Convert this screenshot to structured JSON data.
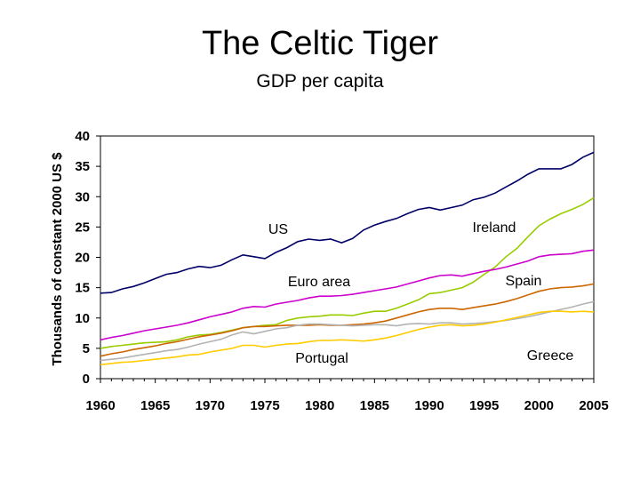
{
  "chart_data": {
    "type": "line",
    "title": "The Celtic Tiger",
    "subtitle": "GDP per capita",
    "xlabel": "",
    "ylabel": "Thousands of constant 2000 US $",
    "xlim": [
      1960,
      2005
    ],
    "ylim": [
      0,
      40
    ],
    "x_ticks": [
      "1960",
      "1965",
      "1970",
      "1975",
      "1980",
      "1985",
      "1990",
      "1995",
      "2000",
      "2005"
    ],
    "y_ticks": [
      "0",
      "5",
      "10",
      "15",
      "20",
      "25",
      "30",
      "35",
      "40"
    ],
    "grid": false,
    "legend": "none (series labeled inline)",
    "x": [
      1960,
      1961,
      1962,
      1963,
      1964,
      1965,
      1966,
      1967,
      1968,
      1969,
      1970,
      1971,
      1972,
      1973,
      1974,
      1975,
      1976,
      1977,
      1978,
      1979,
      1980,
      1981,
      1982,
      1983,
      1984,
      1985,
      1986,
      1987,
      1988,
      1989,
      1990,
      1991,
      1992,
      1993,
      1994,
      1995,
      1996,
      1997,
      1998,
      1999,
      2000,
      2001,
      2002,
      2003,
      2004,
      2005
    ],
    "series": [
      {
        "name": "US",
        "color": "#000066",
        "values": [
          14.1,
          14.2,
          14.8,
          15.2,
          15.8,
          16.5,
          17.2,
          17.5,
          18.1,
          18.5,
          18.3,
          18.7,
          19.6,
          20.4,
          20.1,
          19.8,
          20.8,
          21.6,
          22.6,
          23.0,
          22.8,
          23.0,
          22.4,
          23.1,
          24.5,
          25.3,
          25.9,
          26.4,
          27.2,
          27.9,
          28.2,
          27.8,
          28.2,
          28.6,
          29.5,
          29.9,
          30.6,
          31.6,
          32.6,
          33.7,
          34.6,
          34.6,
          34.6,
          35.3,
          36.5,
          37.3
        ]
      },
      {
        "name": "Ireland",
        "color": "#99cc00",
        "values": [
          5.0,
          5.3,
          5.5,
          5.7,
          5.9,
          6.0,
          6.1,
          6.4,
          6.9,
          7.2,
          7.3,
          7.6,
          8.0,
          8.4,
          8.6,
          8.8,
          8.9,
          9.6,
          10.0,
          10.2,
          10.3,
          10.5,
          10.5,
          10.4,
          10.8,
          11.1,
          11.1,
          11.6,
          12.3,
          13.0,
          14.0,
          14.2,
          14.6,
          15.0,
          15.9,
          17.2,
          18.4,
          20.1,
          21.5,
          23.4,
          25.2,
          26.3,
          27.2,
          27.9,
          28.7,
          29.8
        ]
      },
      {
        "name": "Euro area",
        "color": "#cc00cc",
        "values": [
          6.4,
          6.8,
          7.1,
          7.5,
          7.9,
          8.2,
          8.5,
          8.8,
          9.2,
          9.7,
          10.2,
          10.6,
          11.0,
          11.6,
          11.9,
          11.8,
          12.3,
          12.6,
          12.9,
          13.3,
          13.6,
          13.6,
          13.7,
          13.9,
          14.2,
          14.5,
          14.8,
          15.1,
          15.6,
          16.1,
          16.6,
          17.0,
          17.1,
          16.9,
          17.3,
          17.7,
          18.0,
          18.4,
          18.9,
          19.4,
          20.1,
          20.4,
          20.5,
          20.6,
          21.0,
          21.2
        ]
      },
      {
        "name": "Spain",
        "color": "#cc6600",
        "values": [
          3.7,
          4.1,
          4.4,
          4.8,
          5.1,
          5.4,
          5.8,
          6.1,
          6.5,
          6.9,
          7.2,
          7.5,
          7.9,
          8.4,
          8.6,
          8.6,
          8.7,
          8.8,
          8.8,
          8.8,
          8.9,
          8.8,
          8.8,
          8.9,
          9.0,
          9.2,
          9.5,
          10.0,
          10.5,
          11.0,
          11.4,
          11.6,
          11.6,
          11.4,
          11.7,
          12.0,
          12.3,
          12.7,
          13.2,
          13.8,
          14.4,
          14.8,
          15.0,
          15.1,
          15.3,
          15.6
        ]
      },
      {
        "name": "Greece",
        "color": "#b3b3b3",
        "values": [
          3.0,
          3.2,
          3.4,
          3.7,
          4.0,
          4.3,
          4.6,
          4.8,
          5.2,
          5.7,
          6.1,
          6.5,
          7.2,
          7.7,
          7.4,
          7.8,
          8.2,
          8.4,
          8.8,
          9.0,
          9.0,
          8.9,
          8.8,
          8.7,
          8.8,
          8.9,
          8.9,
          8.7,
          9.0,
          9.1,
          9.0,
          9.2,
          9.2,
          9.0,
          9.1,
          9.2,
          9.4,
          9.6,
          9.9,
          10.2,
          10.6,
          11.0,
          11.4,
          11.8,
          12.3,
          12.7
        ]
      },
      {
        "name": "Portugal",
        "color": "#ffcc00",
        "values": [
          2.3,
          2.5,
          2.7,
          2.8,
          3.0,
          3.2,
          3.4,
          3.6,
          3.9,
          4.0,
          4.4,
          4.7,
          5.0,
          5.5,
          5.5,
          5.2,
          5.5,
          5.7,
          5.8,
          6.1,
          6.3,
          6.3,
          6.4,
          6.3,
          6.2,
          6.4,
          6.7,
          7.1,
          7.6,
          8.1,
          8.5,
          8.8,
          8.9,
          8.7,
          8.8,
          9.0,
          9.3,
          9.7,
          10.1,
          10.5,
          10.9,
          11.1,
          11.1,
          11.0,
          11.1,
          11.0
        ]
      }
    ],
    "annotations": [
      {
        "text": "US",
        "series": "US"
      },
      {
        "text": "Ireland",
        "series": "Ireland"
      },
      {
        "text": "Euro area",
        "series": "Euro area"
      },
      {
        "text": "Spain",
        "series": "Spain"
      },
      {
        "text": "Portugal",
        "series": "Portugal"
      },
      {
        "text": "Greece",
        "series": "Greece"
      }
    ]
  }
}
